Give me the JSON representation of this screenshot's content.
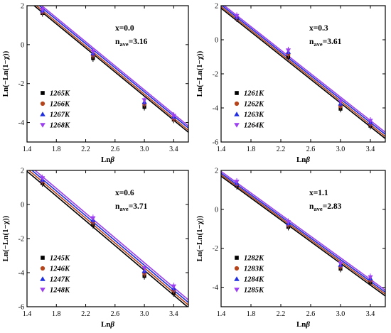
{
  "chart_data": [
    {
      "type": "scatter",
      "xlabel": "Lnβ",
      "ylabel": "Ln(−Ln(1−χ))",
      "xlim": [
        1.4,
        3.6
      ],
      "ylim": [
        -5,
        2
      ],
      "xticks": [
        1.4,
        1.8,
        2.2,
        2.6,
        3.0,
        3.4
      ],
      "yticks": [
        2,
        0,
        -2,
        -4
      ],
      "annotation": {
        "x_label": "x=0.0",
        "n_base": "n",
        "n_sub": "ave",
        "n_value": "=3.16"
      },
      "legend_position": "bottom-left",
      "series": [
        {
          "name": "1265K",
          "color": "#000000",
          "marker": "square",
          "x": [
            1.61,
            2.3,
            3.0,
            3.4
          ],
          "y": [
            1.62,
            -0.7,
            -3.2,
            -3.85
          ]
        },
        {
          "name": "1266K",
          "color": "#b5441a",
          "marker": "circle",
          "x": [
            1.61,
            2.3,
            3.0,
            3.4
          ],
          "y": [
            1.68,
            -0.55,
            -3.05,
            -3.8
          ]
        },
        {
          "name": "1267K",
          "color": "#1f2ee0",
          "marker": "triangle-up",
          "x": [
            1.61,
            2.3,
            3.0,
            3.4
          ],
          "y": [
            1.75,
            -0.45,
            -2.95,
            -3.7
          ]
        },
        {
          "name": "1268K",
          "color": "#9b3ff0",
          "marker": "triangle-down",
          "x": [
            1.61,
            2.3,
            3.0,
            3.4
          ],
          "y": [
            1.8,
            -0.35,
            -2.85,
            -3.65
          ]
        }
      ],
      "fits": [
        {
          "color": "#000000",
          "y_at_xmin": 2.3,
          "y_at_xmax": -4.5
        },
        {
          "color": "#b5441a",
          "y_at_xmin": 2.4,
          "y_at_xmax": -4.4
        },
        {
          "color": "#1f2ee0",
          "y_at_xmin": 2.52,
          "y_at_xmax": -4.28
        },
        {
          "color": "#9b3ff0",
          "y_at_xmin": 2.62,
          "y_at_xmax": -4.18
        }
      ]
    },
    {
      "type": "scatter",
      "xlabel": "Lnβ",
      "ylabel": "Ln(−Ln(1−χ))",
      "xlim": [
        1.4,
        3.6
      ],
      "ylim": [
        -6,
        2
      ],
      "xticks": [
        1.4,
        1.8,
        2.2,
        2.6,
        3.0,
        3.4
      ],
      "yticks": [
        2,
        0,
        -2,
        -4,
        -6
      ],
      "annotation": {
        "x_label": "x=0.3",
        "n_base": "n",
        "n_sub": "ave",
        "n_value": "=3.61"
      },
      "legend_position": "bottom-left",
      "series": [
        {
          "name": "1261K",
          "color": "#000000",
          "marker": "square",
          "x": [
            1.61,
            2.3,
            3.0,
            3.4
          ],
          "y": [
            1.25,
            -1.0,
            -4.05,
            -5.05
          ]
        },
        {
          "name": "1262K",
          "color": "#b5441a",
          "marker": "circle",
          "x": [
            1.61,
            2.3,
            3.0,
            3.4
          ],
          "y": [
            1.3,
            -0.85,
            -3.9,
            -4.95
          ]
        },
        {
          "name": "1263K",
          "color": "#1f2ee0",
          "marker": "triangle-up",
          "x": [
            1.61,
            2.3,
            3.0,
            3.4
          ],
          "y": [
            1.35,
            -0.72,
            -3.75,
            -4.85
          ]
        },
        {
          "name": "1264K",
          "color": "#9b3ff0",
          "marker": "triangle-down",
          "x": [
            1.61,
            2.3,
            3.0,
            3.4
          ],
          "y": [
            1.4,
            -0.62,
            -3.62,
            -4.75
          ]
        }
      ],
      "fits": [
        {
          "color": "#000000",
          "y_at_xmin": 1.85,
          "y_at_xmax": -5.8
        },
        {
          "color": "#b5441a",
          "y_at_xmin": 1.95,
          "y_at_xmax": -5.68
        },
        {
          "color": "#1f2ee0",
          "y_at_xmin": 2.05,
          "y_at_xmax": -5.55
        },
        {
          "color": "#9b3ff0",
          "y_at_xmin": 2.15,
          "y_at_xmax": -5.43
        }
      ]
    },
    {
      "type": "scatter",
      "xlabel": "Lnβ",
      "ylabel": "Ln(−Ln(1−χ))",
      "xlim": [
        1.4,
        3.6
      ],
      "ylim": [
        -6,
        2
      ],
      "xticks": [
        1.4,
        1.8,
        2.2,
        2.6,
        3.0,
        3.4
      ],
      "yticks": [
        2,
        0,
        -2,
        -4,
        -6
      ],
      "annotation": {
        "x_label": "x=0.6",
        "n_base": "n",
        "n_sub": "ave",
        "n_value": "=3.71"
      },
      "legend_position": "bottom-left",
      "series": [
        {
          "name": "1245K",
          "color": "#000000",
          "marker": "square",
          "x": [
            1.61,
            2.3,
            3.0,
            3.4
          ],
          "y": [
            1.25,
            -1.2,
            -4.2,
            -5.2
          ]
        },
        {
          "name": "1246K",
          "color": "#b5441a",
          "marker": "circle",
          "x": [
            1.61,
            2.3,
            3.0,
            3.4
          ],
          "y": [
            1.35,
            -1.05,
            -4.05,
            -5.05
          ]
        },
        {
          "name": "1247K",
          "color": "#1f2ee0",
          "marker": "triangle-up",
          "x": [
            1.61,
            2.3,
            3.0,
            3.4
          ],
          "y": [
            1.45,
            -0.92,
            -3.9,
            -4.92
          ]
        },
        {
          "name": "1248K",
          "color": "#9b3ff0",
          "marker": "triangle-down",
          "x": [
            1.61,
            2.3,
            3.0,
            3.4
          ],
          "y": [
            1.55,
            -0.8,
            -3.75,
            -4.8
          ]
        }
      ],
      "fits": [
        {
          "color": "#000000",
          "y_at_xmin": 1.95,
          "y_at_xmax": -6.05
        },
        {
          "color": "#b5441a",
          "y_at_xmin": 2.1,
          "y_at_xmax": -5.9
        },
        {
          "color": "#1f2ee0",
          "y_at_xmin": 2.25,
          "y_at_xmax": -5.75
        },
        {
          "color": "#9b3ff0",
          "y_at_xmin": 2.4,
          "y_at_xmax": -5.6
        }
      ]
    },
    {
      "type": "scatter",
      "xlabel": "Lnβ",
      "ylabel": "Ln(−Ln(1−χ))",
      "xlim": [
        1.4,
        3.6
      ],
      "ylim": [
        -5,
        2
      ],
      "xticks": [
        1.4,
        1.8,
        2.2,
        2.6,
        3.0,
        3.4
      ],
      "yticks": [
        2,
        0,
        -2,
        -4
      ],
      "annotation": {
        "x_label": "x=1.1",
        "n_base": "n",
        "n_sub": "ave",
        "n_value": "=2.83"
      },
      "legend_position": "bottom-left",
      "series": [
        {
          "name": "1282K",
          "color": "#000000",
          "marker": "square",
          "x": [
            1.61,
            2.3,
            3.0,
            3.4
          ],
          "y": [
            1.2,
            -0.9,
            -3.05,
            -3.75
          ]
        },
        {
          "name": "1283K",
          "color": "#b5441a",
          "marker": "circle",
          "x": [
            1.61,
            2.3,
            3.0,
            3.4
          ],
          "y": [
            1.28,
            -0.8,
            -2.95,
            -3.65
          ]
        },
        {
          "name": "1284K",
          "color": "#1f2ee0",
          "marker": "triangle-up",
          "x": [
            1.61,
            2.3,
            3.0,
            3.4
          ],
          "y": [
            1.35,
            -0.72,
            -2.85,
            -3.55
          ]
        },
        {
          "name": "1285K",
          "color": "#9b3ff0",
          "marker": "triangle-down",
          "x": [
            1.61,
            2.3,
            3.0,
            3.4
          ],
          "y": [
            1.42,
            -0.65,
            -2.78,
            -3.48
          ]
        }
      ],
      "fits": [
        {
          "color": "#000000",
          "y_at_xmin": 1.7,
          "y_at_xmax": -4.45
        },
        {
          "color": "#b5441a",
          "y_at_xmin": 1.78,
          "y_at_xmax": -4.35
        },
        {
          "color": "#1f2ee0",
          "y_at_xmin": 1.86,
          "y_at_xmax": -4.25
        },
        {
          "color": "#9b3ff0",
          "y_at_xmin": 1.95,
          "y_at_xmax": -4.15
        }
      ]
    }
  ]
}
